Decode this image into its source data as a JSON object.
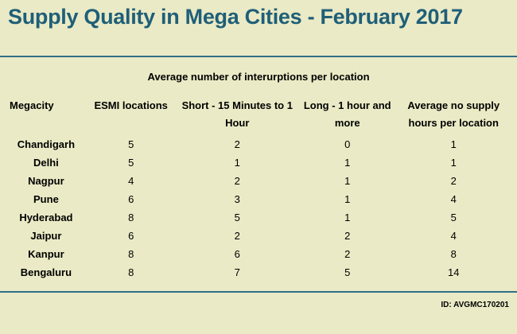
{
  "title": "Supply Quality in Mega Cities - February 2017",
  "subtitle": "Average number of interurptions per location",
  "columns": {
    "megacity": "Megacity",
    "esmi": "ESMI locations",
    "short": "Short - 15 Minutes to 1 Hour",
    "long": "Long - 1 hour and more",
    "avg": "Average no supply hours per location"
  },
  "rows": [
    {
      "city": "Chandigarh",
      "esmi": "5",
      "short": "2",
      "long": "0",
      "avg": "1"
    },
    {
      "city": "Delhi",
      "esmi": "5",
      "short": "1",
      "long": "1",
      "avg": "1"
    },
    {
      "city": "Nagpur",
      "esmi": "4",
      "short": "2",
      "long": "1",
      "avg": "2"
    },
    {
      "city": "Pune",
      "esmi": "6",
      "short": "3",
      "long": "1",
      "avg": "4"
    },
    {
      "city": "Hyderabad",
      "esmi": "8",
      "short": "5",
      "long": "1",
      "avg": "5"
    },
    {
      "city": "Jaipur",
      "esmi": "6",
      "short": "2",
      "long": "2",
      "avg": "4"
    },
    {
      "city": "Kanpur",
      "esmi": "8",
      "short": "6",
      "long": "2",
      "avg": "8"
    },
    {
      "city": "Bengaluru",
      "esmi": "8",
      "short": "7",
      "long": "5",
      "avg": "14"
    }
  ],
  "footer_id": "ID: AVGMC170201",
  "colors": {
    "background": "#eaeac6",
    "title": "#1f5f78",
    "rule": "#2f6f86"
  }
}
